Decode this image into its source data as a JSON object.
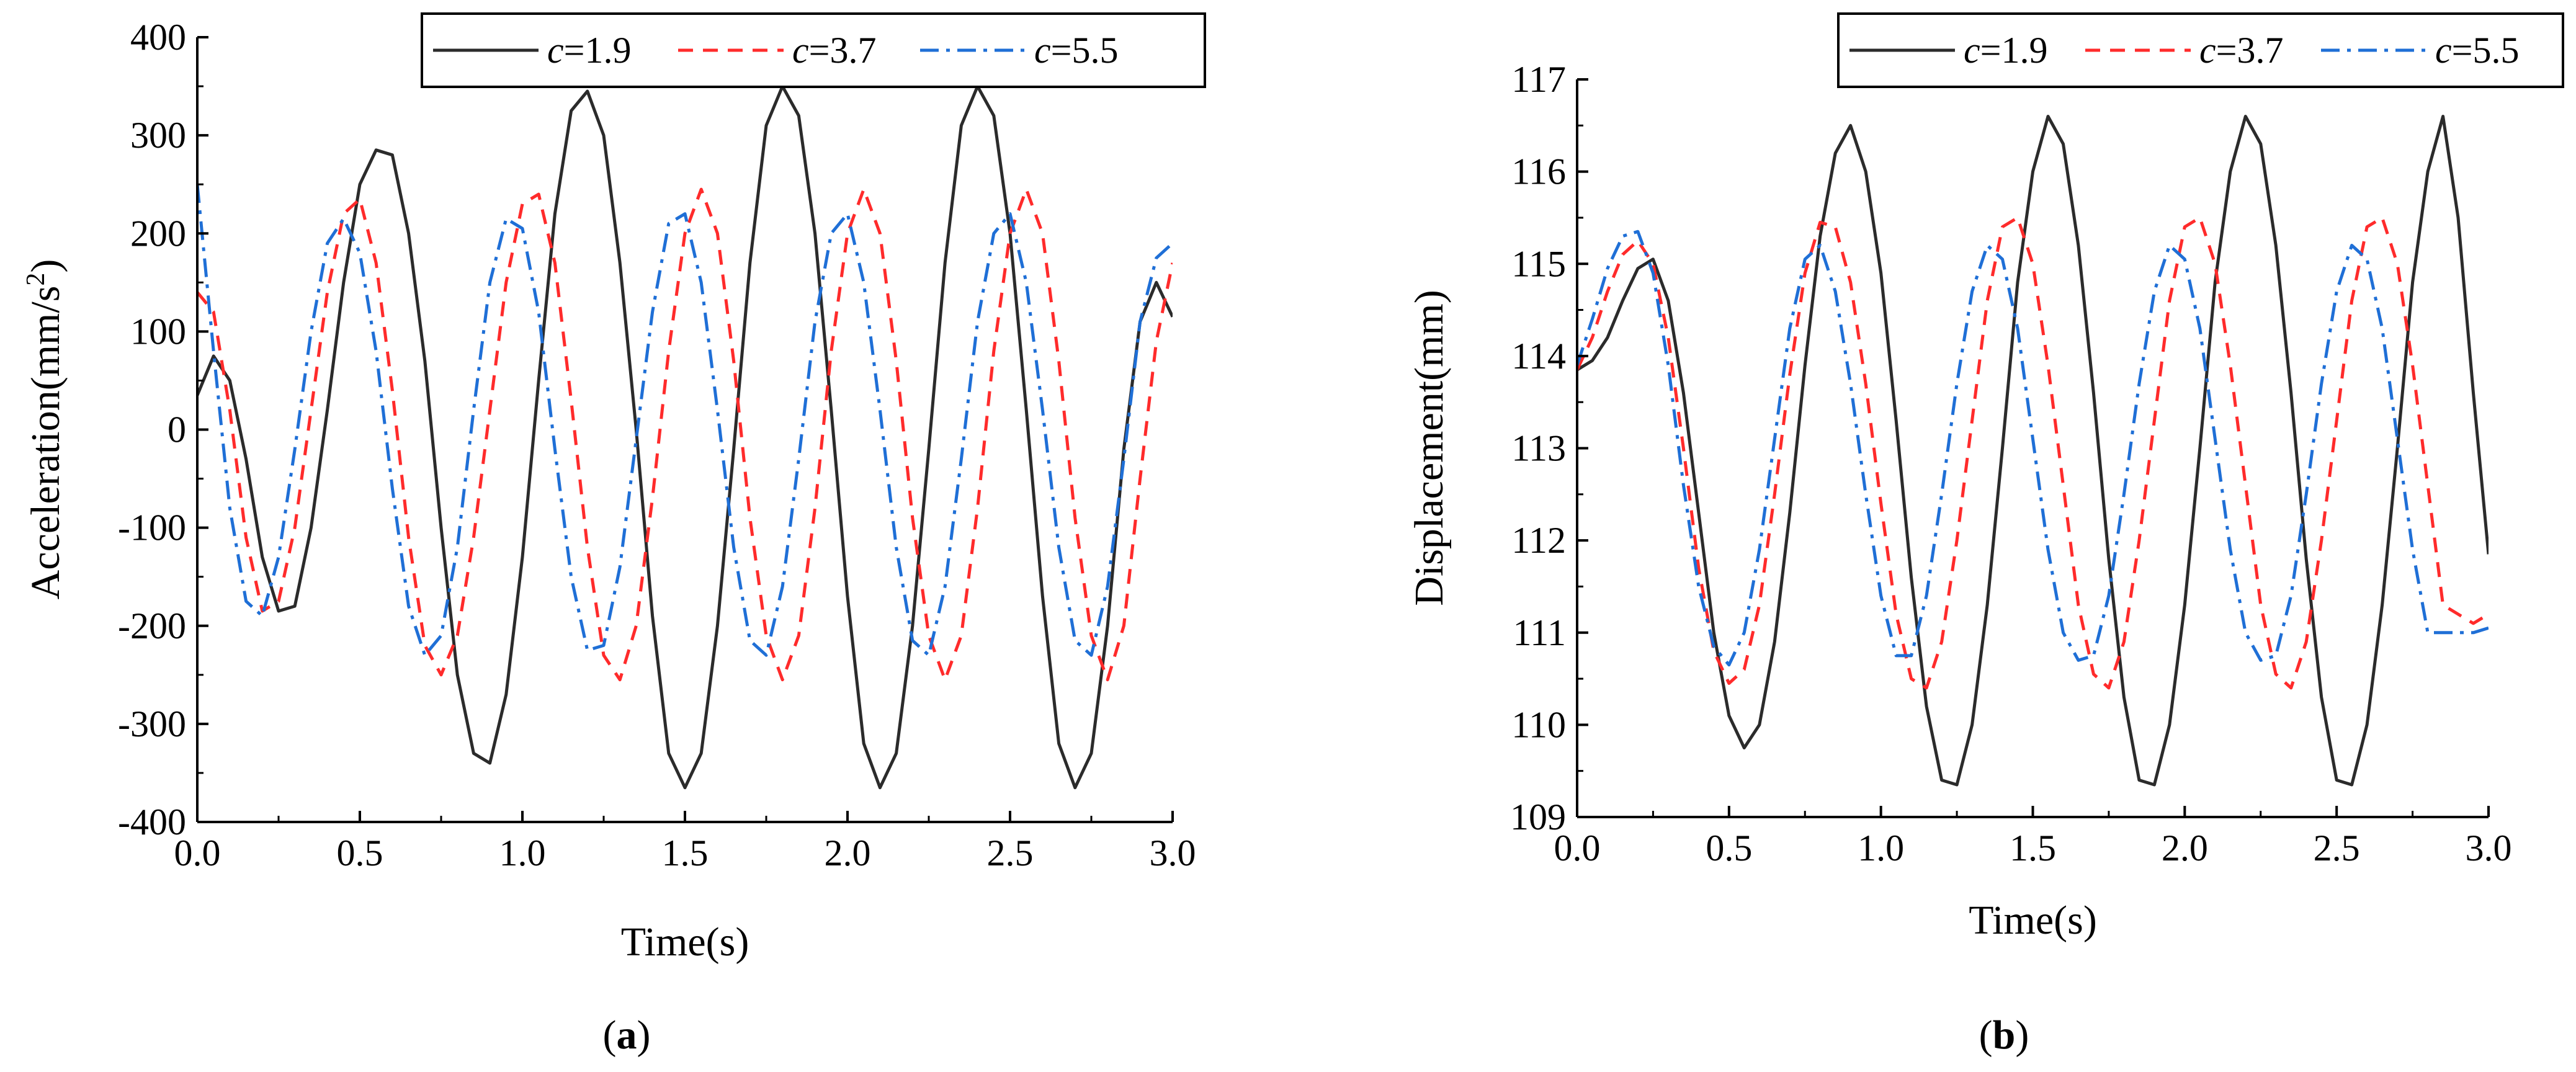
{
  "figure": {
    "panels": [
      {
        "label_open": "(",
        "label_letter": "a",
        "label_close": ")"
      },
      {
        "label_open": "(",
        "label_letter": "b",
        "label_close": ")"
      }
    ]
  },
  "colors": {
    "c1_9": "#2b2b2b",
    "c3_7": "#ff2b2b",
    "c5_5": "#1f6fd6",
    "axis": "#000000"
  },
  "chart_data": [
    {
      "type": "line",
      "title": "",
      "xlabel": "Time(s)",
      "ylabel": "Acceleration(mm/s",
      "ylabel_sup": "2",
      "ylabel_close": ")",
      "xlim": [
        0,
        3.0
      ],
      "ylim": [
        -400,
        400
      ],
      "xticks": [
        0,
        0.5,
        1.0,
        1.5,
        2.0,
        2.5,
        3.0
      ],
      "xtick_labels": [
        "0.0",
        "0.5",
        "1.0",
        "1.5",
        "2.0",
        "2.5",
        "3.0"
      ],
      "yticks": [
        -400,
        -300,
        -200,
        -100,
        0,
        100,
        200,
        300,
        400
      ],
      "ytick_labels": [
        "-400",
        "-300",
        "-200",
        "-100",
        "0",
        "100",
        "200",
        "300",
        "400"
      ],
      "grid": false,
      "legend_position": "top-right",
      "series": [
        {
          "name_var": "c",
          "name_val": "=1.9",
          "style": "solid",
          "color": "#2b2b2b",
          "x": [
            0.0,
            0.05,
            0.1,
            0.15,
            0.2,
            0.25,
            0.3,
            0.35,
            0.4,
            0.45,
            0.5,
            0.55,
            0.6,
            0.65,
            0.7,
            0.75,
            0.8,
            0.85,
            0.9,
            0.95,
            1.0,
            1.05,
            1.1,
            1.15,
            1.2,
            1.25,
            1.3,
            1.35,
            1.4,
            1.45,
            1.5,
            1.55,
            1.6,
            1.65,
            1.7,
            1.75,
            1.8,
            1.85,
            1.9,
            1.95,
            2.0,
            2.05,
            2.1,
            2.15,
            2.2,
            2.25,
            2.3,
            2.35,
            2.4,
            2.45,
            2.5,
            2.55,
            2.6,
            2.65,
            2.7,
            2.75,
            2.8,
            2.85,
            2.9,
            2.95,
            3.0
          ],
          "y": [
            35,
            75,
            50,
            -30,
            -130,
            -185,
            -180,
            -100,
            20,
            150,
            250,
            285,
            280,
            200,
            70,
            -100,
            -250,
            -330,
            -340,
            -270,
            -130,
            50,
            220,
            325,
            345,
            300,
            170,
            0,
            -190,
            -330,
            -365,
            -330,
            -200,
            -20,
            170,
            310,
            350,
            320,
            200,
            20,
            -170,
            -320,
            -365,
            -330,
            -200,
            -20,
            170,
            310,
            350,
            320,
            200,
            20,
            -170,
            -320,
            -365,
            -330,
            -200,
            -20,
            110,
            150,
            115
          ]
        },
        {
          "name_var": "c",
          "name_val": "=3.7",
          "style": "dashed",
          "color": "#ff2b2b",
          "x": [
            0.0,
            0.05,
            0.1,
            0.15,
            0.2,
            0.25,
            0.3,
            0.35,
            0.4,
            0.45,
            0.5,
            0.55,
            0.6,
            0.65,
            0.7,
            0.75,
            0.8,
            0.85,
            0.9,
            0.95,
            1.0,
            1.05,
            1.1,
            1.15,
            1.2,
            1.25,
            1.3,
            1.35,
            1.4,
            1.45,
            1.5,
            1.55,
            1.6,
            1.65,
            1.7,
            1.75,
            1.8,
            1.85,
            1.9,
            1.95,
            2.0,
            2.05,
            2.1,
            2.15,
            2.2,
            2.25,
            2.3,
            2.35,
            2.4,
            2.45,
            2.5,
            2.55,
            2.6,
            2.65,
            2.7,
            2.75,
            2.8,
            2.85,
            2.9,
            2.95,
            3.0
          ],
          "y": [
            140,
            120,
            20,
            -110,
            -185,
            -175,
            -100,
            20,
            140,
            220,
            235,
            170,
            40,
            -110,
            -220,
            -250,
            -210,
            -110,
            20,
            150,
            230,
            240,
            170,
            30,
            -120,
            -230,
            -255,
            -200,
            -70,
            80,
            200,
            245,
            200,
            70,
            -90,
            -210,
            -255,
            -210,
            -80,
            80,
            200,
            245,
            200,
            70,
            -90,
            -210,
            -255,
            -210,
            -80,
            80,
            200,
            245,
            200,
            70,
            -90,
            -210,
            -255,
            -200,
            -50,
            90,
            170
          ]
        },
        {
          "name_var": "c",
          "name_val": "=5.5",
          "style": "dashdot",
          "color": "#1f6fd6",
          "x": [
            0.0,
            0.05,
            0.1,
            0.15,
            0.2,
            0.25,
            0.3,
            0.35,
            0.4,
            0.45,
            0.5,
            0.55,
            0.6,
            0.65,
            0.7,
            0.75,
            0.8,
            0.85,
            0.9,
            0.95,
            1.0,
            1.05,
            1.1,
            1.15,
            1.2,
            1.25,
            1.3,
            1.35,
            1.4,
            1.45,
            1.5,
            1.55,
            1.6,
            1.65,
            1.7,
            1.75,
            1.8,
            1.85,
            1.9,
            1.95,
            2.0,
            2.05,
            2.1,
            2.15,
            2.2,
            2.25,
            2.3,
            2.35,
            2.4,
            2.45,
            2.5,
            2.55,
            2.6,
            2.65,
            2.7,
            2.75,
            2.8,
            2.85,
            2.9,
            2.95,
            3.0
          ],
          "y": [
            250,
            80,
            -80,
            -175,
            -190,
            -130,
            -20,
            100,
            190,
            215,
            180,
            80,
            -60,
            -180,
            -230,
            -210,
            -120,
            20,
            150,
            215,
            205,
            120,
            -20,
            -150,
            -225,
            -220,
            -140,
            -10,
            120,
            210,
            220,
            150,
            20,
            -120,
            -215,
            -230,
            -160,
            -30,
            110,
            200,
            220,
            150,
            20,
            -120,
            -215,
            -230,
            -160,
            -30,
            110,
            200,
            220,
            150,
            20,
            -120,
            -215,
            -230,
            -160,
            -30,
            110,
            175,
            190
          ]
        }
      ]
    },
    {
      "type": "line",
      "title": "",
      "xlabel": "Time(s)",
      "ylabel": "Displacement(mm)",
      "xlim": [
        0,
        3.0
      ],
      "ylim": [
        109,
        117
      ],
      "xticks": [
        0,
        0.5,
        1.0,
        1.5,
        2.0,
        2.5,
        3.0
      ],
      "xtick_labels": [
        "0.0",
        "0.5",
        "1.0",
        "1.5",
        "2.0",
        "2.5",
        "3.0"
      ],
      "yticks": [
        109,
        110,
        111,
        112,
        113,
        114,
        115,
        116,
        117
      ],
      "ytick_labels": [
        "109",
        "110",
        "111",
        "112",
        "113",
        "114",
        "115",
        "116",
        "117"
      ],
      "grid": false,
      "legend_position": "top-right",
      "series": [
        {
          "name_var": "c",
          "name_val": "=1.9",
          "style": "solid",
          "color": "#2b2b2b",
          "x": [
            0.0,
            0.05,
            0.1,
            0.15,
            0.2,
            0.25,
            0.3,
            0.35,
            0.4,
            0.45,
            0.5,
            0.55,
            0.6,
            0.65,
            0.7,
            0.75,
            0.8,
            0.85,
            0.9,
            0.95,
            1.0,
            1.05,
            1.1,
            1.15,
            1.2,
            1.25,
            1.3,
            1.35,
            1.4,
            1.45,
            1.5,
            1.55,
            1.6,
            1.65,
            1.7,
            1.75,
            1.8,
            1.85,
            1.9,
            1.95,
            2.0,
            2.05,
            2.1,
            2.15,
            2.2,
            2.25,
            2.3,
            2.35,
            2.4,
            2.45,
            2.5,
            2.55,
            2.6,
            2.65,
            2.7,
            2.75,
            2.8,
            2.85,
            2.9,
            2.95,
            3.0
          ],
          "y": [
            113.85,
            113.95,
            114.2,
            114.6,
            114.95,
            115.05,
            114.6,
            113.6,
            112.3,
            111.0,
            110.1,
            109.75,
            110.0,
            110.9,
            112.3,
            113.9,
            115.3,
            116.2,
            116.5,
            116.0,
            114.9,
            113.3,
            111.6,
            110.2,
            109.4,
            109.35,
            110.0,
            111.3,
            113.0,
            114.8,
            116.0,
            116.6,
            116.3,
            115.2,
            113.6,
            111.8,
            110.3,
            109.4,
            109.35,
            110.0,
            111.3,
            113.0,
            114.8,
            116.0,
            116.6,
            116.3,
            115.2,
            113.6,
            111.8,
            110.3,
            109.4,
            109.35,
            110.0,
            111.3,
            113.0,
            114.8,
            116.0,
            116.6,
            115.5,
            113.6,
            111.85
          ]
        },
        {
          "name_var": "c",
          "name_val": "=3.7",
          "style": "dashed",
          "color": "#ff2b2b",
          "x": [
            0.0,
            0.05,
            0.1,
            0.15,
            0.2,
            0.25,
            0.3,
            0.35,
            0.4,
            0.45,
            0.5,
            0.55,
            0.6,
            0.65,
            0.7,
            0.75,
            0.8,
            0.85,
            0.9,
            0.95,
            1.0,
            1.05,
            1.1,
            1.15,
            1.2,
            1.25,
            1.3,
            1.35,
            1.4,
            1.45,
            1.5,
            1.55,
            1.6,
            1.65,
            1.7,
            1.75,
            1.8,
            1.85,
            1.9,
            1.95,
            2.0,
            2.05,
            2.1,
            2.15,
            2.2,
            2.25,
            2.3,
            2.35,
            2.4,
            2.45,
            2.5,
            2.55,
            2.6,
            2.65,
            2.7,
            2.75,
            2.8,
            2.85,
            2.9,
            2.95,
            3.0
          ],
          "y": [
            113.85,
            114.2,
            114.7,
            115.1,
            115.25,
            115.0,
            114.2,
            113.0,
            111.7,
            110.8,
            110.45,
            110.6,
            111.3,
            112.5,
            113.8,
            114.9,
            115.45,
            115.4,
            114.8,
            113.7,
            112.4,
            111.2,
            110.5,
            110.4,
            110.9,
            112.0,
            113.3,
            114.6,
            115.4,
            115.5,
            115.0,
            113.9,
            112.6,
            111.3,
            110.55,
            110.4,
            110.9,
            112.0,
            113.3,
            114.6,
            115.4,
            115.5,
            115.0,
            113.9,
            112.6,
            111.3,
            110.55,
            110.4,
            110.9,
            112.0,
            113.3,
            114.6,
            115.4,
            115.5,
            115.0,
            113.9,
            112.6,
            111.3,
            111.2,
            111.1,
            111.2
          ]
        },
        {
          "name_var": "c",
          "name_val": "=5.5",
          "style": "dashdot",
          "color": "#1f6fd6",
          "x": [
            0.0,
            0.05,
            0.1,
            0.15,
            0.2,
            0.25,
            0.3,
            0.35,
            0.4,
            0.45,
            0.5,
            0.55,
            0.6,
            0.65,
            0.7,
            0.75,
            0.8,
            0.85,
            0.9,
            0.95,
            1.0,
            1.05,
            1.1,
            1.15,
            1.2,
            1.25,
            1.3,
            1.35,
            1.4,
            1.45,
            1.5,
            1.55,
            1.6,
            1.65,
            1.7,
            1.75,
            1.8,
            1.85,
            1.9,
            1.95,
            2.0,
            2.05,
            2.1,
            2.15,
            2.2,
            2.25,
            2.3,
            2.35,
            2.4,
            2.45,
            2.5,
            2.55,
            2.6,
            2.65,
            2.7,
            2.75,
            2.8,
            2.85,
            2.9,
            2.95,
            3.0
          ],
          "y": [
            113.9,
            114.4,
            114.95,
            115.3,
            115.35,
            114.9,
            113.9,
            112.6,
            111.5,
            110.85,
            110.65,
            111.0,
            111.9,
            113.1,
            114.3,
            115.05,
            115.2,
            114.7,
            113.7,
            112.5,
            111.4,
            110.75,
            110.75,
            111.4,
            112.5,
            113.7,
            114.7,
            115.2,
            115.05,
            114.3,
            113.1,
            111.9,
            111.0,
            110.7,
            110.75,
            111.4,
            112.5,
            113.7,
            114.7,
            115.2,
            115.05,
            114.3,
            113.1,
            111.9,
            111.0,
            110.7,
            110.75,
            111.4,
            112.5,
            113.7,
            114.7,
            115.2,
            115.05,
            114.3,
            113.1,
            111.9,
            111.0,
            111.0,
            111.0,
            111.0,
            111.05
          ]
        }
      ]
    }
  ]
}
